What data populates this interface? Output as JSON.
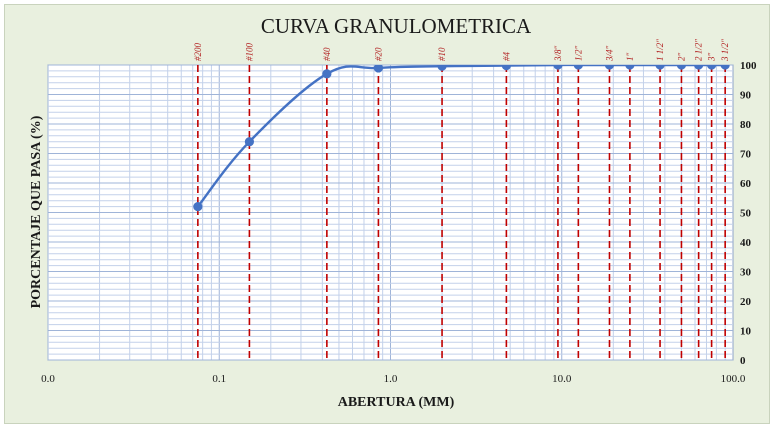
{
  "chart_data": {
    "type": "line",
    "title": "CURVA GRANULOMETRICA",
    "xlabel": "ABERTURA (MM)",
    "ylabel": "PORCENTAJE QUE PASA (%)",
    "x_scale": "log",
    "xlim": [
      0.01,
      100
    ],
    "ylim": [
      0,
      100
    ],
    "x_tick_labels": [
      {
        "value": 0.01,
        "label": "0.0"
      },
      {
        "value": 0.1,
        "label": "0.1"
      },
      {
        "value": 1,
        "label": "1.0"
      },
      {
        "value": 10,
        "label": "10.0"
      },
      {
        "value": 100,
        "label": "100.0"
      }
    ],
    "y_ticks": [
      0,
      10,
      20,
      30,
      40,
      50,
      60,
      70,
      80,
      90,
      100
    ],
    "grid": true,
    "line_color": "#4472c4",
    "sieve_line_color": "#c00000",
    "sieves": [
      {
        "name": "#200",
        "opening": 0.075
      },
      {
        "name": "#100",
        "opening": 0.15
      },
      {
        "name": "#40",
        "opening": 0.425
      },
      {
        "name": "#20",
        "opening": 0.85
      },
      {
        "name": "#10",
        "opening": 2.0
      },
      {
        "name": "#4",
        "opening": 4.75
      },
      {
        "name": "3/8\"",
        "opening": 9.5
      },
      {
        "name": "1/2\"",
        "opening": 12.5
      },
      {
        "name": "3/4\"",
        "opening": 19.0
      },
      {
        "name": "1\"",
        "opening": 25.0
      },
      {
        "name": "1 1/2\"",
        "opening": 37.5
      },
      {
        "name": "2\"",
        "opening": 50.0
      },
      {
        "name": "2 1/2\"",
        "opening": 63.0
      },
      {
        "name": "3\"",
        "opening": 75.0
      },
      {
        "name": "3 1/2\"",
        "opening": 90.0
      }
    ],
    "series": [
      {
        "x": [
          0.075,
          0.15,
          0.425,
          0.85,
          2.0,
          4.75,
          9.5,
          12.5,
          19.0,
          25.0,
          37.5,
          50.0,
          63.0,
          75.0,
          90.0
        ],
        "y": [
          52,
          74,
          97,
          99,
          99.6,
          99.8,
          100,
          100,
          100,
          100,
          100,
          100,
          100,
          100,
          100
        ]
      }
    ]
  }
}
